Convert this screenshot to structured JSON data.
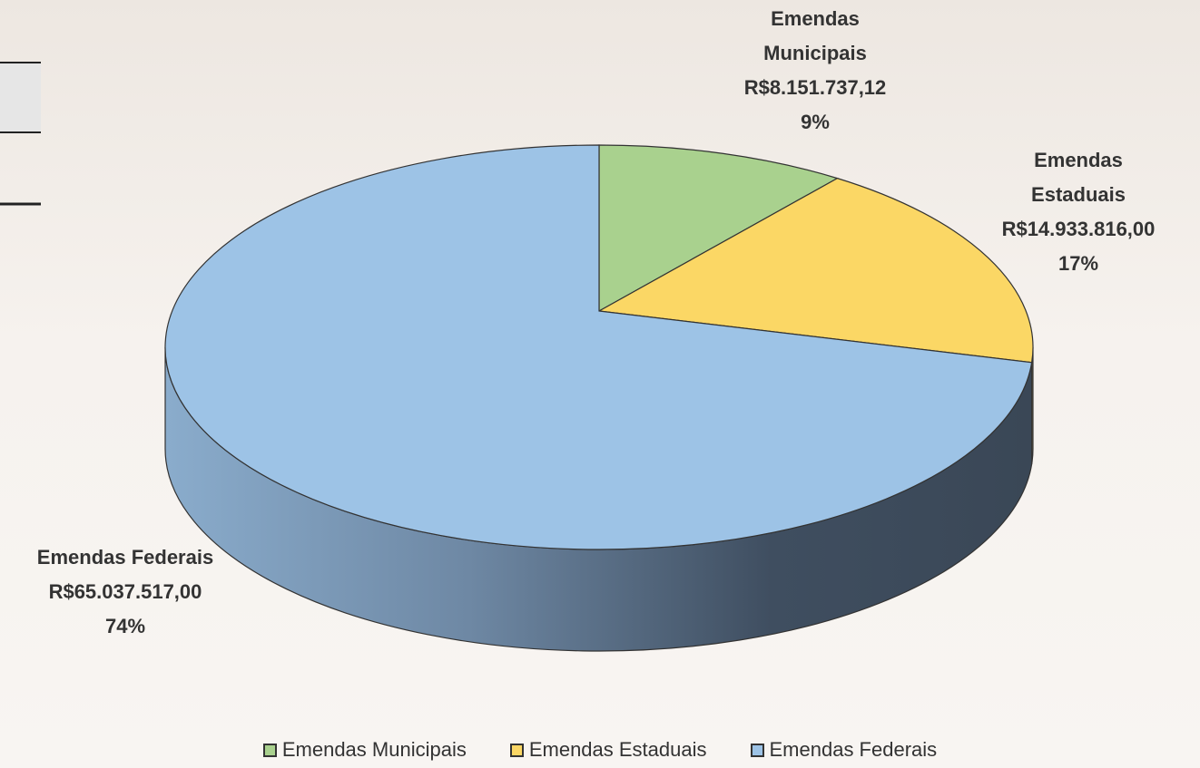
{
  "chart_data": {
    "type": "pie",
    "categories": [
      "Emendas Municipais",
      "Emendas Estaduais",
      "Emendas Federais"
    ],
    "values": [
      8151737.12,
      14933816.0,
      65037517.0
    ],
    "value_labels": [
      "R$8.151.737,12",
      "R$14.933.816,00",
      "R$65.037.517,00"
    ],
    "percentages": [
      9,
      17,
      74
    ],
    "percentage_labels": [
      "9%",
      "17%",
      "74%"
    ],
    "colors": [
      "#a9d18e",
      "#fbd765",
      "#9dc3e6"
    ],
    "legend": "bottom"
  }
}
